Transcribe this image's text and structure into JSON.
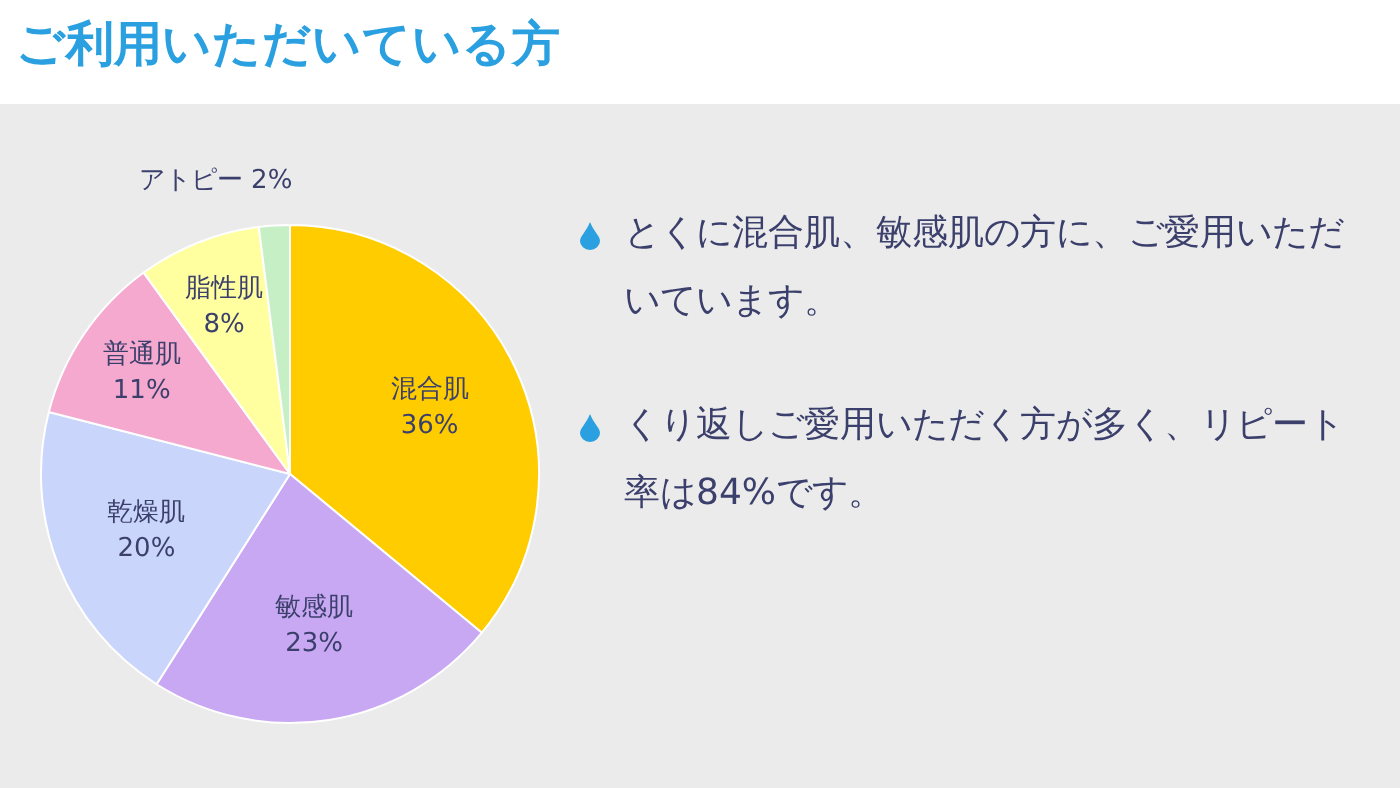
{
  "chart_data": {
    "type": "pie",
    "title": "ご利用いただいている方",
    "categories": [
      "混合肌",
      "敏感肌",
      "乾燥肌",
      "普通肌",
      "脂性肌",
      "アトピー"
    ],
    "values": [
      36,
      23,
      20,
      11,
      8,
      2
    ],
    "value_labels": [
      "36%",
      "23%",
      "20%",
      "11%",
      "8%",
      "2%"
    ],
    "colors": [
      "#ffcc00",
      "#c8a8f2",
      "#c9d5fb",
      "#f5a9cf",
      "#ffffa0",
      "#c6efc6"
    ],
    "legend": false,
    "annotations": [
      "とくに混合肌、敏感肌の方に、ご愛用いただいています。",
      "くり返しご愛用いただく方が多く、リピート率は84%です。"
    ]
  }
}
